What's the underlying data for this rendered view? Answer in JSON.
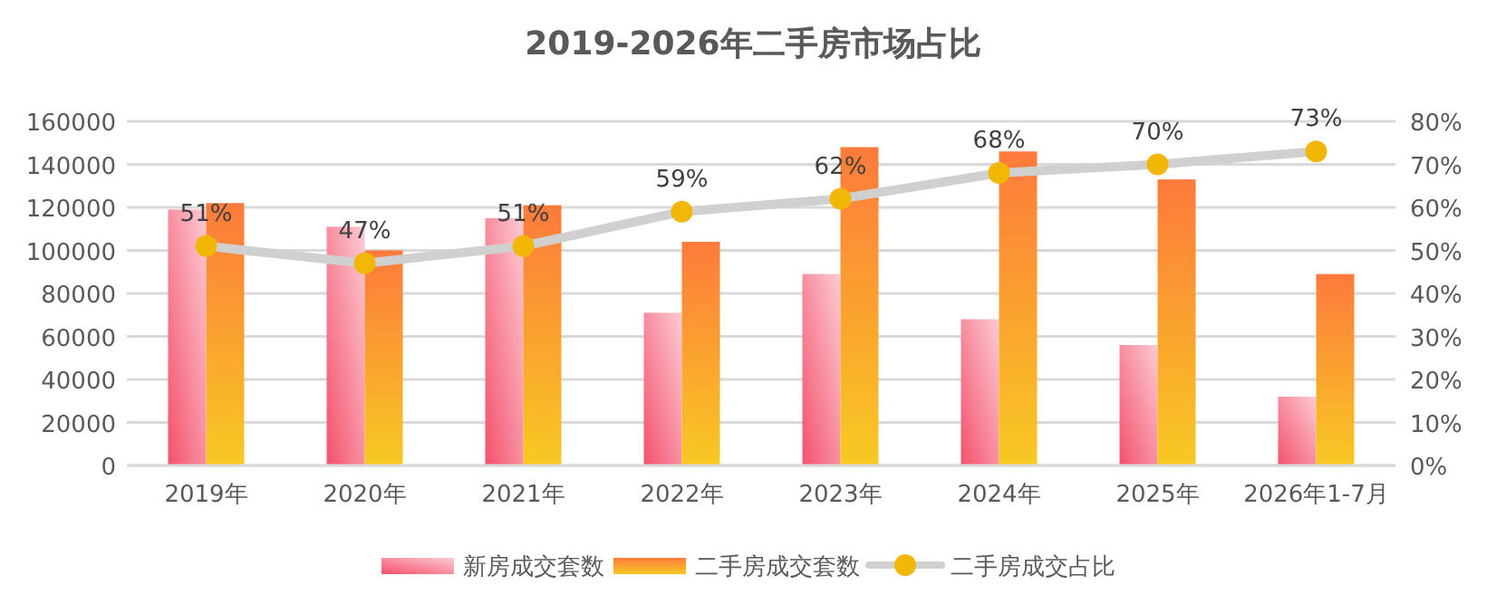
{
  "chart_data": {
    "type": "bar",
    "title": "2019-2026年二手房市场占比",
    "categories": [
      "2019年",
      "2020年",
      "2021年",
      "2022年",
      "2023年",
      "2024年",
      "2025年",
      "2026年1-7月"
    ],
    "series": [
      {
        "name": "新房成交套数",
        "color": "#f4516c",
        "values": [
          119000,
          111000,
          115000,
          71000,
          89000,
          68000,
          56000,
          32000
        ]
      },
      {
        "name": "二手房成交套数",
        "color": "#fd7a3c",
        "values": [
          122000,
          100000,
          121000,
          104000,
          148000,
          146000,
          133000,
          89000
        ]
      },
      {
        "name": "二手房成交占比",
        "type": "line",
        "axis": "y2",
        "color": "#d0d0d0",
        "colors": [
          "#f2b705",
          "#f2b705",
          "#f2b705",
          "#f2b705",
          "#f2b705",
          "#f2b705",
          "#f2b705",
          "#f2b705"
        ],
        "marker": "circle",
        "values": [
          51,
          47,
          51,
          59,
          62,
          68,
          70,
          73
        ],
        "value_labels": [
          "51%",
          "47%",
          "51%",
          "59%",
          "62%",
          "68%",
          "70%",
          "73%"
        ]
      }
    ],
    "ylim": [
      0,
      160000
    ],
    "yticks": [
      0,
      20000,
      40000,
      60000,
      80000,
      100000,
      120000,
      140000,
      160000
    ],
    "y2lim": [
      0,
      80
    ],
    "y2ticks": [
      {
        "value": 0,
        "label": "0%"
      },
      {
        "value": 10,
        "label": "10%"
      },
      {
        "value": 20,
        "label": "20%"
      },
      {
        "value": 30,
        "label": "30%"
      },
      {
        "value": 40,
        "label": "40%"
      },
      {
        "value": 50,
        "label": "50%"
      },
      {
        "value": 60,
        "label": "60%"
      },
      {
        "value": 70,
        "label": "70%"
      },
      {
        "value": 80,
        "label": "80%"
      }
    ],
    "grid": "y",
    "legend": "bottom"
  }
}
